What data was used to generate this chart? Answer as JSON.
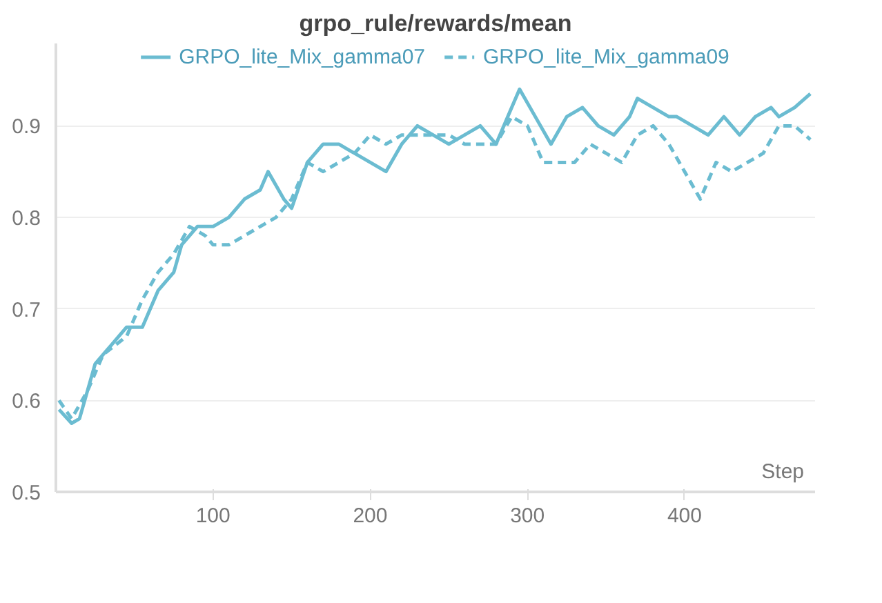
{
  "chart_data": {
    "type": "line",
    "title": "grpo_rule/rewards/mean",
    "xlabel": "Step",
    "xlim": [
      0,
      483
    ],
    "ylim": [
      0.5,
      0.99
    ],
    "xticks": [
      100,
      200,
      300,
      400
    ],
    "yticks": [
      0.5,
      0.6,
      0.7,
      0.8,
      0.9
    ],
    "grid": "y",
    "legend": "top",
    "series": [
      {
        "name": "GRPO_lite_Mix_gamma07",
        "color": "#6bbcd1",
        "line_style": "solid",
        "x": [
          2,
          10,
          15,
          20,
          25,
          35,
          45,
          55,
          65,
          75,
          80,
          90,
          100,
          110,
          120,
          130,
          135,
          145,
          150,
          160,
          170,
          180,
          190,
          200,
          210,
          220,
          230,
          240,
          250,
          260,
          270,
          280,
          290,
          295,
          305,
          315,
          325,
          335,
          345,
          355,
          365,
          370,
          380,
          390,
          395,
          405,
          415,
          425,
          435,
          445,
          455,
          460,
          470,
          480
        ],
        "values": [
          0.59,
          0.575,
          0.58,
          0.61,
          0.64,
          0.66,
          0.68,
          0.68,
          0.72,
          0.74,
          0.77,
          0.79,
          0.79,
          0.8,
          0.82,
          0.83,
          0.85,
          0.82,
          0.81,
          0.86,
          0.88,
          0.88,
          0.87,
          0.86,
          0.85,
          0.88,
          0.9,
          0.89,
          0.88,
          0.89,
          0.9,
          0.88,
          0.92,
          0.94,
          0.91,
          0.88,
          0.91,
          0.92,
          0.9,
          0.89,
          0.91,
          0.93,
          0.92,
          0.91,
          0.91,
          0.9,
          0.89,
          0.91,
          0.89,
          0.91,
          0.92,
          0.91,
          0.92,
          0.935
        ]
      },
      {
        "name": "GRPO_lite_Mix_gamma09",
        "color": "#6bbcd1",
        "line_style": "dashed",
        "x": [
          2,
          10,
          20,
          30,
          45,
          55,
          65,
          75,
          85,
          95,
          100,
          110,
          120,
          130,
          140,
          150,
          160,
          170,
          180,
          190,
          200,
          210,
          220,
          230,
          240,
          250,
          260,
          270,
          280,
          290,
          300,
          310,
          320,
          330,
          340,
          350,
          360,
          370,
          380,
          390,
          400,
          410,
          420,
          430,
          440,
          450,
          460,
          470,
          480
        ],
        "values": [
          0.6,
          0.58,
          0.61,
          0.65,
          0.67,
          0.71,
          0.74,
          0.76,
          0.79,
          0.78,
          0.77,
          0.77,
          0.78,
          0.79,
          0.8,
          0.82,
          0.86,
          0.85,
          0.86,
          0.87,
          0.89,
          0.88,
          0.89,
          0.89,
          0.89,
          0.89,
          0.88,
          0.88,
          0.88,
          0.91,
          0.9,
          0.86,
          0.86,
          0.86,
          0.88,
          0.87,
          0.86,
          0.89,
          0.9,
          0.88,
          0.85,
          0.82,
          0.86,
          0.85,
          0.86,
          0.87,
          0.9,
          0.9,
          0.885
        ]
      }
    ]
  }
}
